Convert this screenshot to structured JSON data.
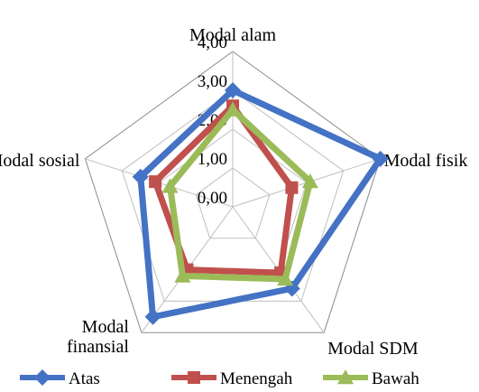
{
  "chart_data": {
    "type": "radar",
    "axes": [
      "Modal alam",
      "Modal fisik",
      "Modal SDM",
      "Modal finansial",
      "Modal sosial"
    ],
    "axis_label_lines": [
      [
        "Modal alam"
      ],
      [
        "Modal fisik"
      ],
      [
        "Modal SDM"
      ],
      [
        "Modal",
        "finansial"
      ],
      [
        "Modal sosial"
      ]
    ],
    "ticks": [
      "0,00",
      "1,00",
      "2,00",
      "3,00",
      "4,00"
    ],
    "rmax": 4,
    "legend_position": "bottom",
    "series": [
      {
        "name": "Atas",
        "color": "#4472C4",
        "values": [
          3.0,
          4.0,
          2.6,
          3.5,
          2.5
        ]
      },
      {
        "name": "Menengah",
        "color": "#C0504D",
        "values": [
          2.6,
          1.6,
          2.1,
          2.0,
          2.1
        ]
      },
      {
        "name": "Bawah",
        "color": "#9BBB59",
        "values": [
          2.5,
          2.1,
          2.3,
          2.2,
          1.7
        ]
      }
    ]
  }
}
